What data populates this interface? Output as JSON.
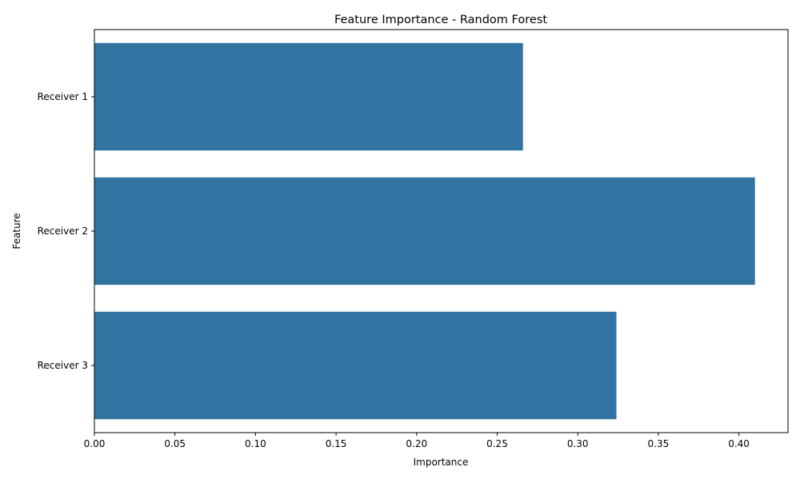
{
  "chart_data": {
    "type": "bar",
    "orientation": "horizontal",
    "title": "Feature Importance - Random Forest",
    "xlabel": "Importance",
    "ylabel": "Feature",
    "categories": [
      "Receiver 1",
      "Receiver 2",
      "Receiver 3"
    ],
    "values": [
      0.266,
      0.41,
      0.324
    ],
    "xlim": [
      0,
      0.4305
    ],
    "xticks": [
      "0.00",
      "0.05",
      "0.10",
      "0.15",
      "0.20",
      "0.25",
      "0.30",
      "0.35",
      "0.40"
    ],
    "grid": false,
    "legend": "none",
    "bar_color": "#3274a1"
  }
}
